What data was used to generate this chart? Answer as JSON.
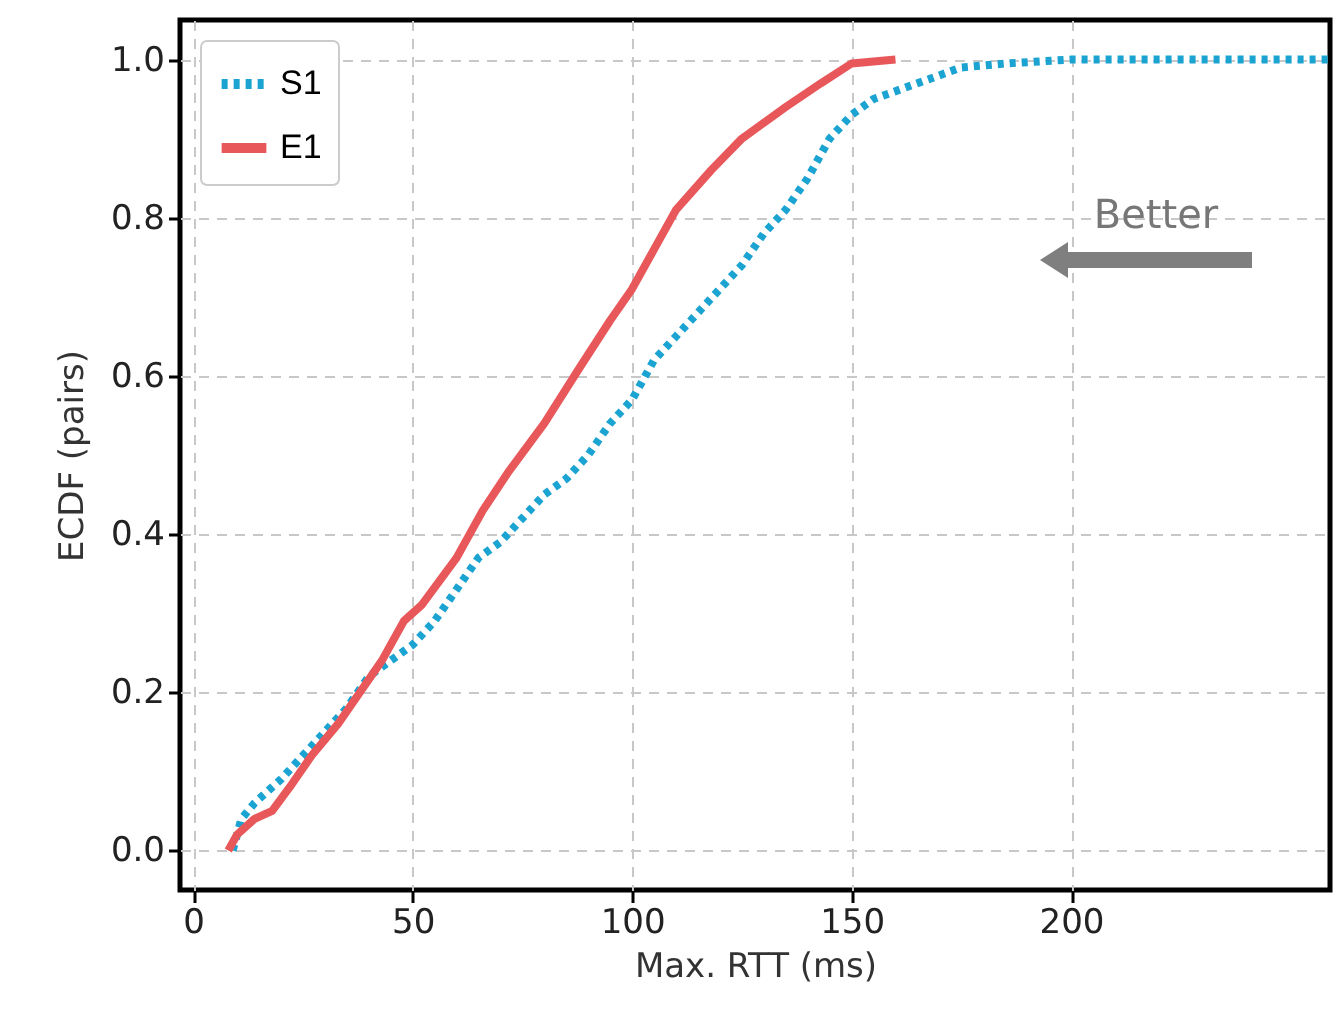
{
  "chart_data": {
    "type": "line",
    "xlabel": "Max. RTT (ms)",
    "ylabel": "ECDF (pairs)",
    "xlim": [
      -3,
      259
    ],
    "ylim": [
      -0.05,
      1.05
    ],
    "xticks": [
      0,
      50,
      100,
      150,
      200
    ],
    "yticks": [
      {
        "value": 0,
        "label": "0.0"
      },
      {
        "value": 0.2,
        "label": "0.2"
      },
      {
        "value": 0.4,
        "label": "0.4"
      },
      {
        "value": 0.6,
        "label": "0.6"
      },
      {
        "value": 0.8,
        "label": "0.8"
      },
      {
        "value": 1,
        "label": "1.0"
      }
    ],
    "grid": true,
    "legend": "top left",
    "marker": "none",
    "annotations": [
      "Better"
    ],
    "series": [
      {
        "name": "S1",
        "color": "#1ba3d1",
        "line_style": "dotted",
        "x": [
          9,
          11,
          14,
          20,
          25,
          30,
          35,
          40,
          45,
          50,
          55,
          60,
          65,
          70,
          75,
          80,
          85,
          90,
          95,
          100,
          105,
          110,
          115,
          120,
          125,
          130,
          135,
          140,
          145,
          150,
          155,
          165,
          175,
          185,
          200,
          259
        ],
        "values": [
          0,
          0.04,
          0.06,
          0.09,
          0.12,
          0.15,
          0.18,
          0.22,
          0.24,
          0.26,
          0.29,
          0.33,
          0.37,
          0.39,
          0.42,
          0.45,
          0.47,
          0.5,
          0.54,
          0.57,
          0.62,
          0.65,
          0.68,
          0.71,
          0.74,
          0.78,
          0.81,
          0.85,
          0.9,
          0.93,
          0.95,
          0.97,
          0.99,
          0.995,
          1,
          1
        ]
      },
      {
        "name": "E1",
        "color": "#e8585a",
        "line_style": "solid",
        "x": [
          8,
          10,
          14,
          18,
          22,
          27,
          33,
          38,
          43,
          48,
          52,
          56,
          60,
          66,
          72,
          80,
          88,
          95,
          100,
          105,
          110,
          118,
          125,
          135,
          143,
          150,
          160
        ],
        "values": [
          0,
          0.02,
          0.04,
          0.05,
          0.08,
          0.12,
          0.16,
          0.2,
          0.24,
          0.29,
          0.31,
          0.34,
          0.37,
          0.43,
          0.48,
          0.54,
          0.61,
          0.67,
          0.71,
          0.76,
          0.81,
          0.86,
          0.9,
          0.94,
          0.97,
          0.995,
          1
        ]
      }
    ]
  }
}
